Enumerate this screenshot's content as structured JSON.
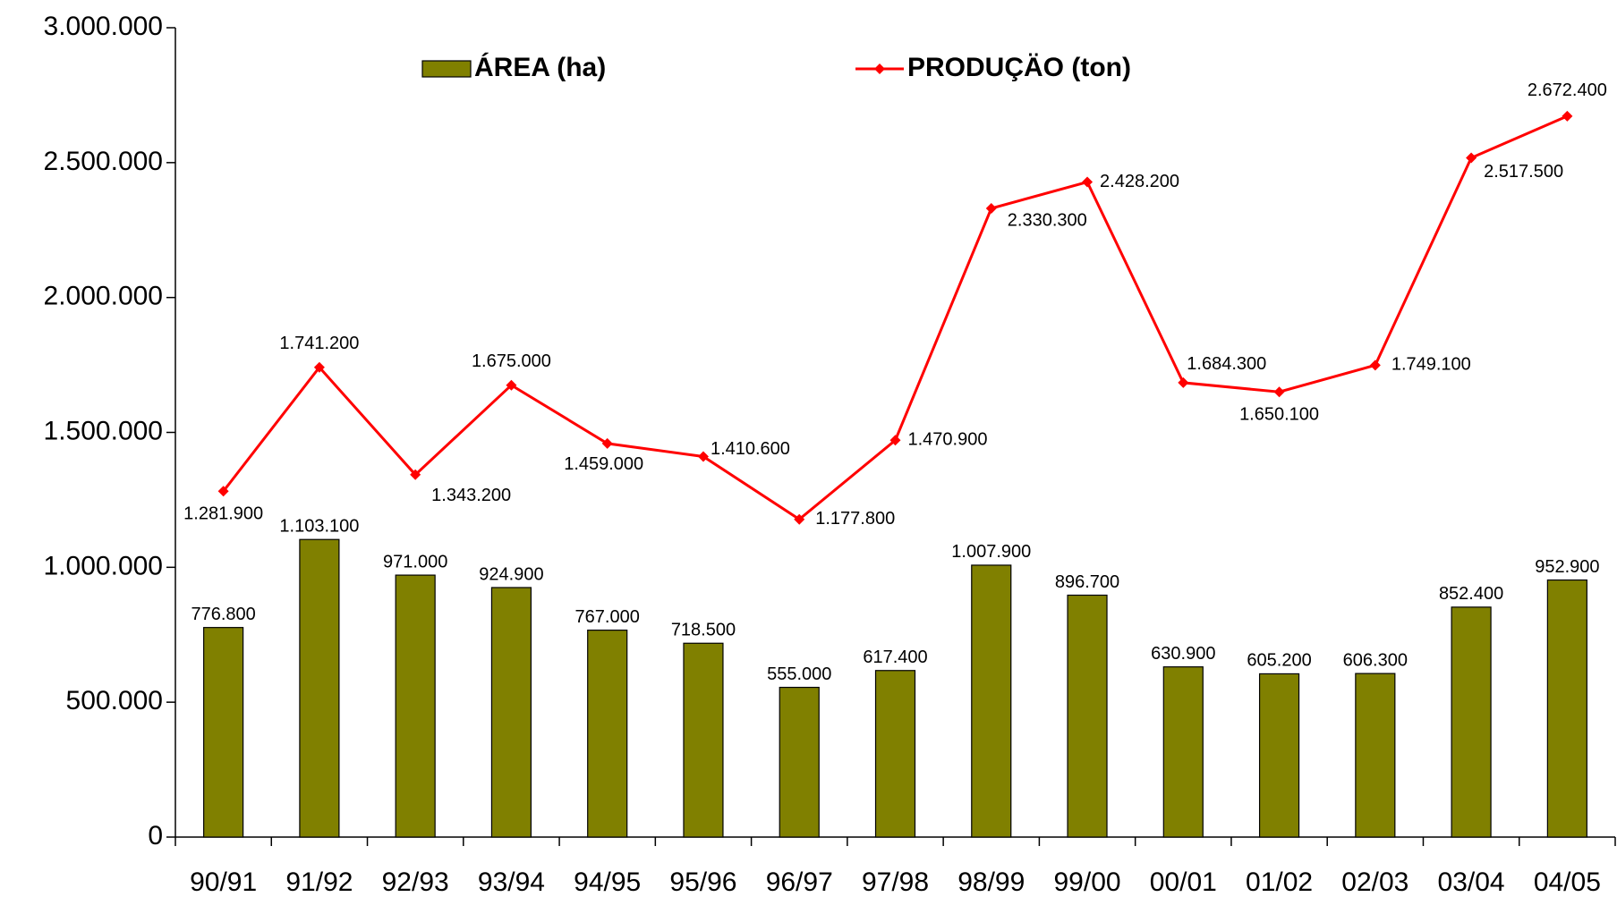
{
  "chart_data": {
    "type": "bar-line",
    "categories": [
      "90/91",
      "91/92",
      "92/93",
      "93/94",
      "94/95",
      "95/96",
      "96/97",
      "97/98",
      "98/99",
      "99/00",
      "00/01",
      "01/02",
      "02/03",
      "03/04",
      "04/05"
    ],
    "series": [
      {
        "name": "ÁREA  (ha)",
        "type": "bar",
        "color": "#808000",
        "values": [
          776800,
          1103100,
          971000,
          924900,
          767000,
          718500,
          555000,
          617400,
          1007900,
          896700,
          630900,
          605200,
          606300,
          852400,
          952900
        ],
        "value_labels": [
          "776.800",
          "1.103.100",
          "971.000",
          "924.900",
          "767.000",
          "718.500",
          "555.000",
          "617.400",
          "1.007.900",
          "896.700",
          "630.900",
          "605.200",
          "606.300",
          "852.400",
          "952.900"
        ]
      },
      {
        "name": "PRODUÇÄO  (ton)",
        "type": "line",
        "color": "#ff0000",
        "values": [
          1281900,
          1741200,
          1343200,
          1675000,
          1459000,
          1410600,
          1177800,
          1470900,
          2330300,
          2428200,
          1684300,
          1650100,
          1749100,
          2517500,
          2672400
        ],
        "value_labels": [
          "1.281.900",
          "1.741.200",
          "1.343.200",
          "1.675.000",
          "1.459.000",
          "1.410.600",
          "1.177.800",
          "1.470.900",
          "2.330.300",
          "2.428.200",
          "1.684.300",
          "1.650.100",
          "1.749.100",
          "2.517.500",
          "2.672.400"
        ]
      }
    ],
    "ylim": [
      0,
      3000000
    ],
    "yticks": [
      0,
      {
        "value": 500000,
        "label": "500.000"
      },
      {
        "value": 1000000,
        "label": "1.000.000"
      },
      {
        "value": 1500000,
        "label": "1.500.000"
      },
      {
        "value": 2000000,
        "label": "2.000.000"
      },
      {
        "value": 2500000,
        "label": "2.500.000"
      },
      {
        "value": 3000000,
        "label": "3.000.000"
      }
    ],
    "grid": false
  }
}
